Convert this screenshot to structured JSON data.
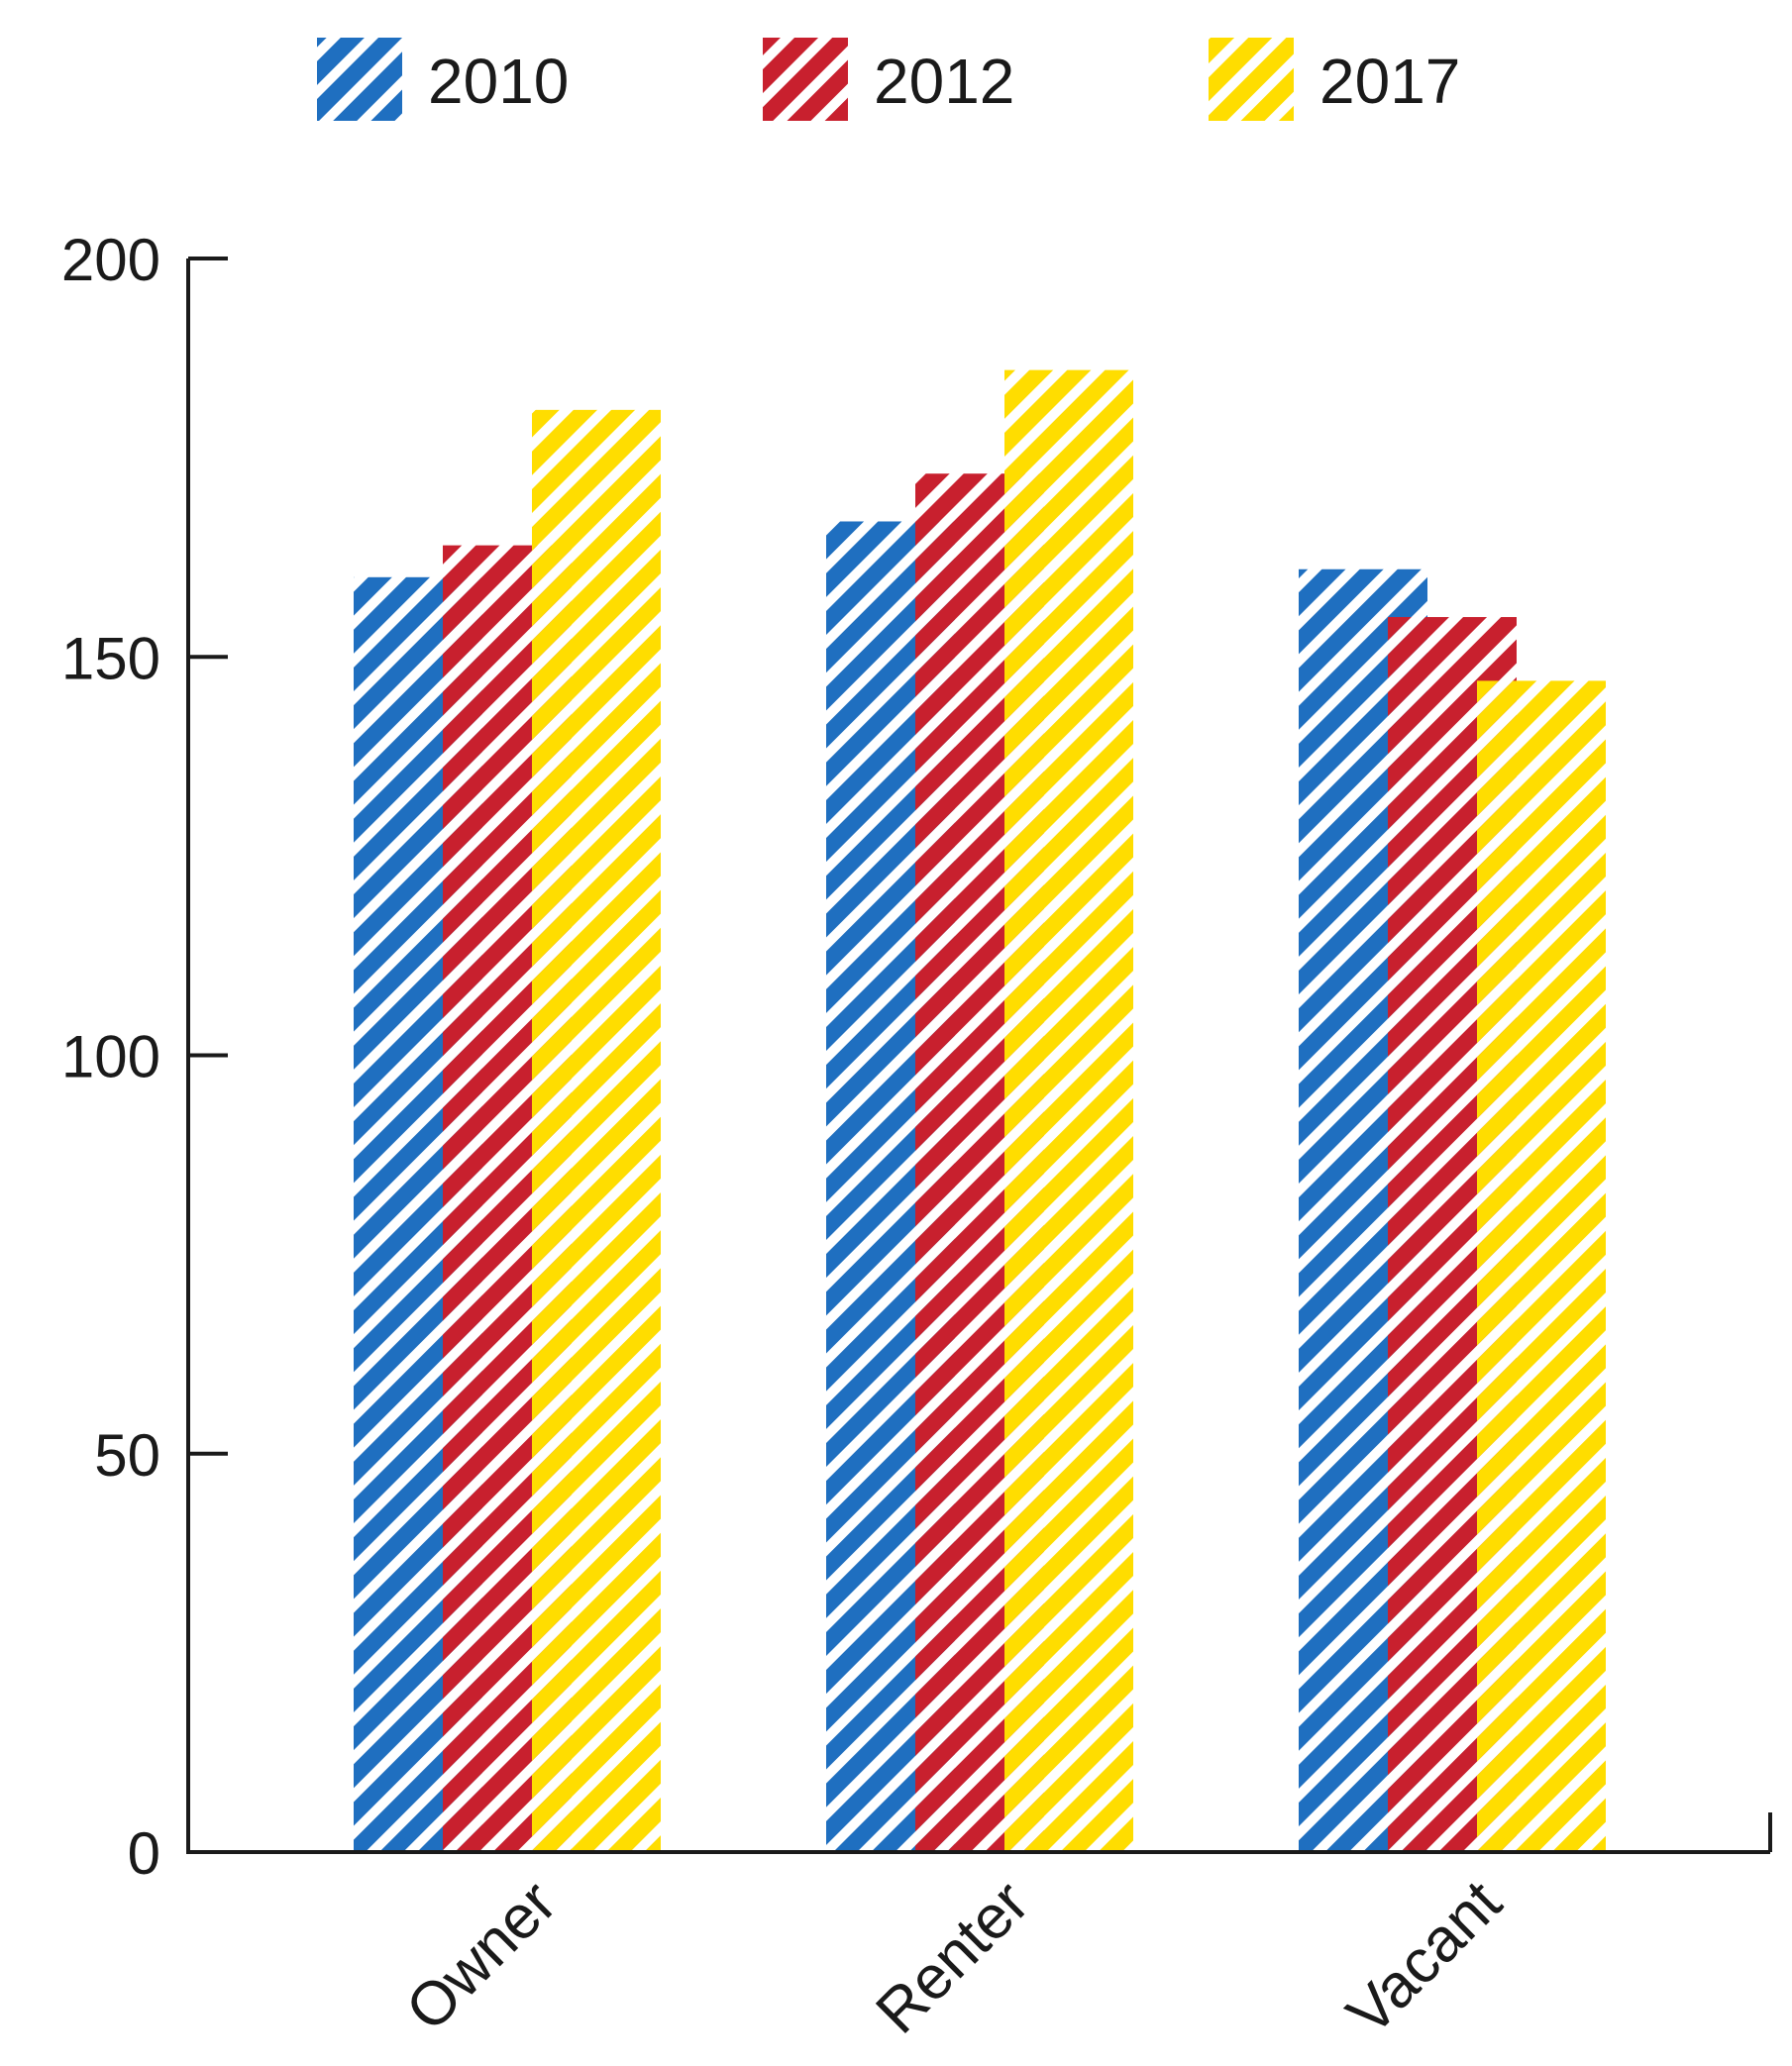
{
  "chart_data": {
    "type": "bar",
    "categories": [
      "Owner",
      "Renter",
      "Vacant"
    ],
    "series": [
      {
        "name": "2010",
        "values": [
          160,
          167,
          161
        ],
        "color": "#1f6fc0"
      },
      {
        "name": "2012",
        "values": [
          164,
          173,
          155
        ],
        "color": "#c8202e"
      },
      {
        "name": "2017",
        "values": [
          181,
          186,
          147
        ],
        "color": "#ffdd00"
      }
    ],
    "ylim": [
      0,
      200
    ],
    "yticks": [
      0,
      50,
      100,
      150,
      200
    ],
    "grid": false,
    "legend_position": "top",
    "pattern": "diagonal-stripes"
  }
}
